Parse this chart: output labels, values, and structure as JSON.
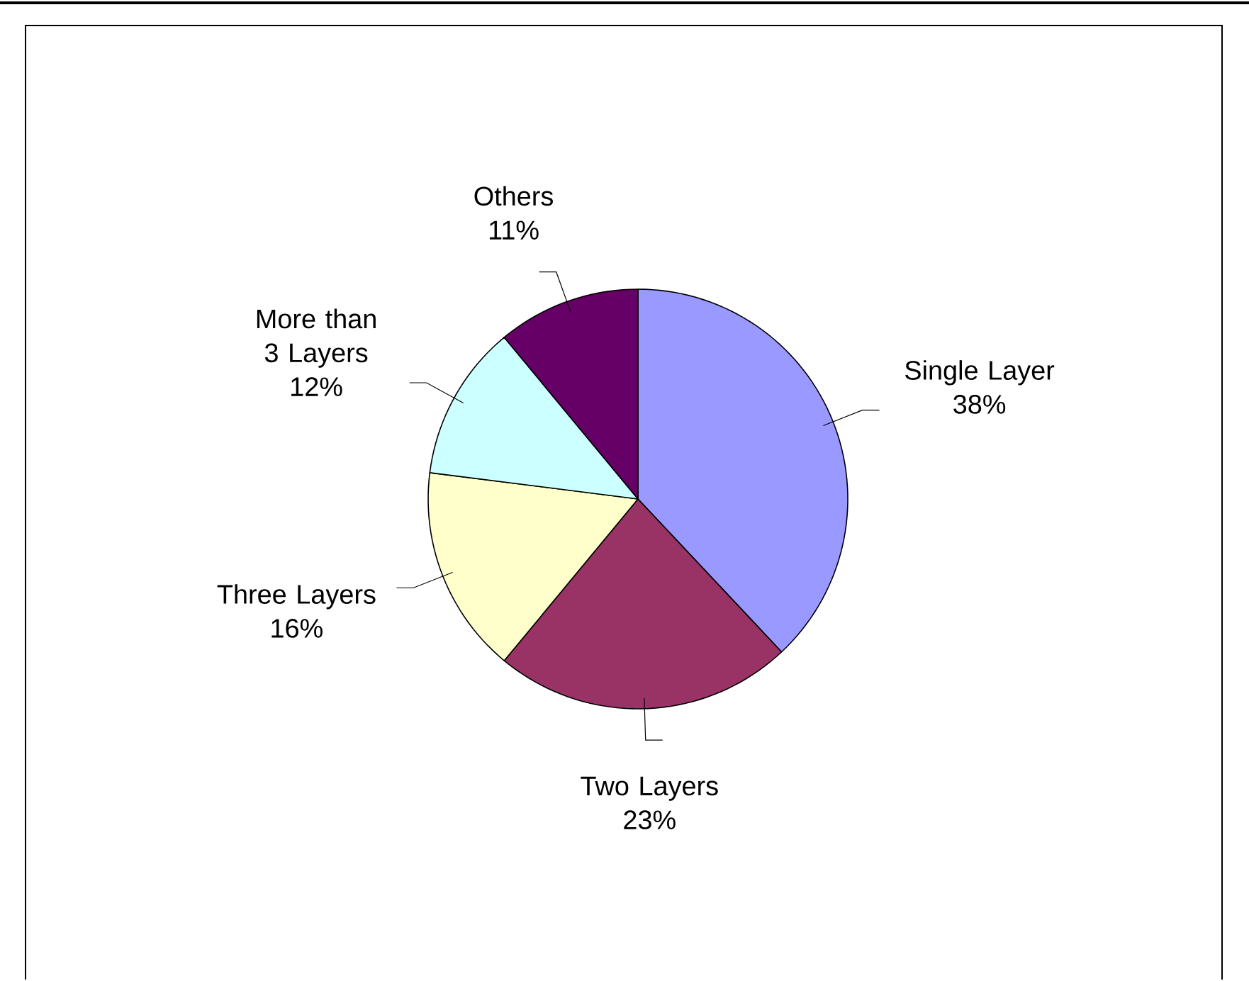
{
  "chart_data": {
    "type": "pie",
    "categories": [
      "Single Layer",
      "Two Layers",
      "Three Layers",
      "More than 3 Layers",
      "Others"
    ],
    "values": [
      38,
      23,
      16,
      12,
      11
    ],
    "colors": [
      "#9999ff",
      "#993366",
      "#ffffcc",
      "#ccffff",
      "#660066"
    ],
    "value_labels": [
      "38%",
      "23%",
      "16%",
      "12%",
      "11%"
    ]
  }
}
